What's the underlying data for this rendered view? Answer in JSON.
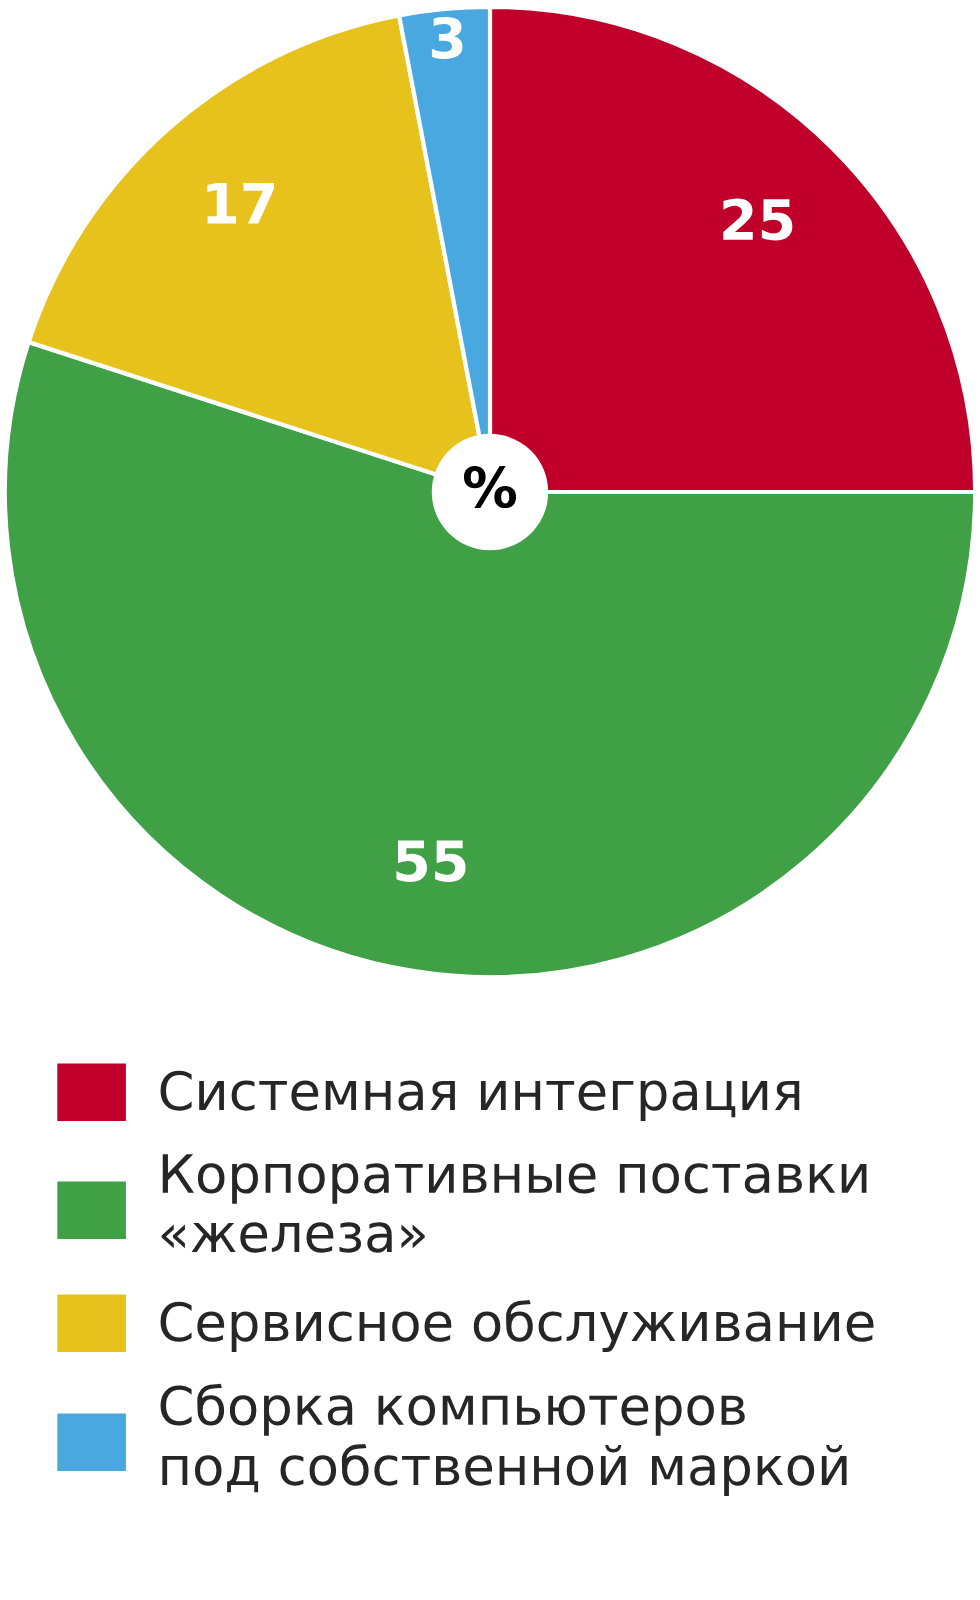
{
  "chart_data": {
    "type": "pie",
    "categories": [
      "Системная интеграция",
      "Корпоративные поставки\n«железа»",
      "Сервисное обслуживание",
      "Сборка компьютеров\nпод собственной маркой"
    ],
    "values": [
      25,
      55,
      17,
      3
    ],
    "colors": [
      "#c0002a",
      "#3fa046",
      "#e8c21c",
      "#4aa8e0"
    ],
    "data_labels": true,
    "legend": "bottom",
    "annotations": [
      "%"
    ]
  }
}
